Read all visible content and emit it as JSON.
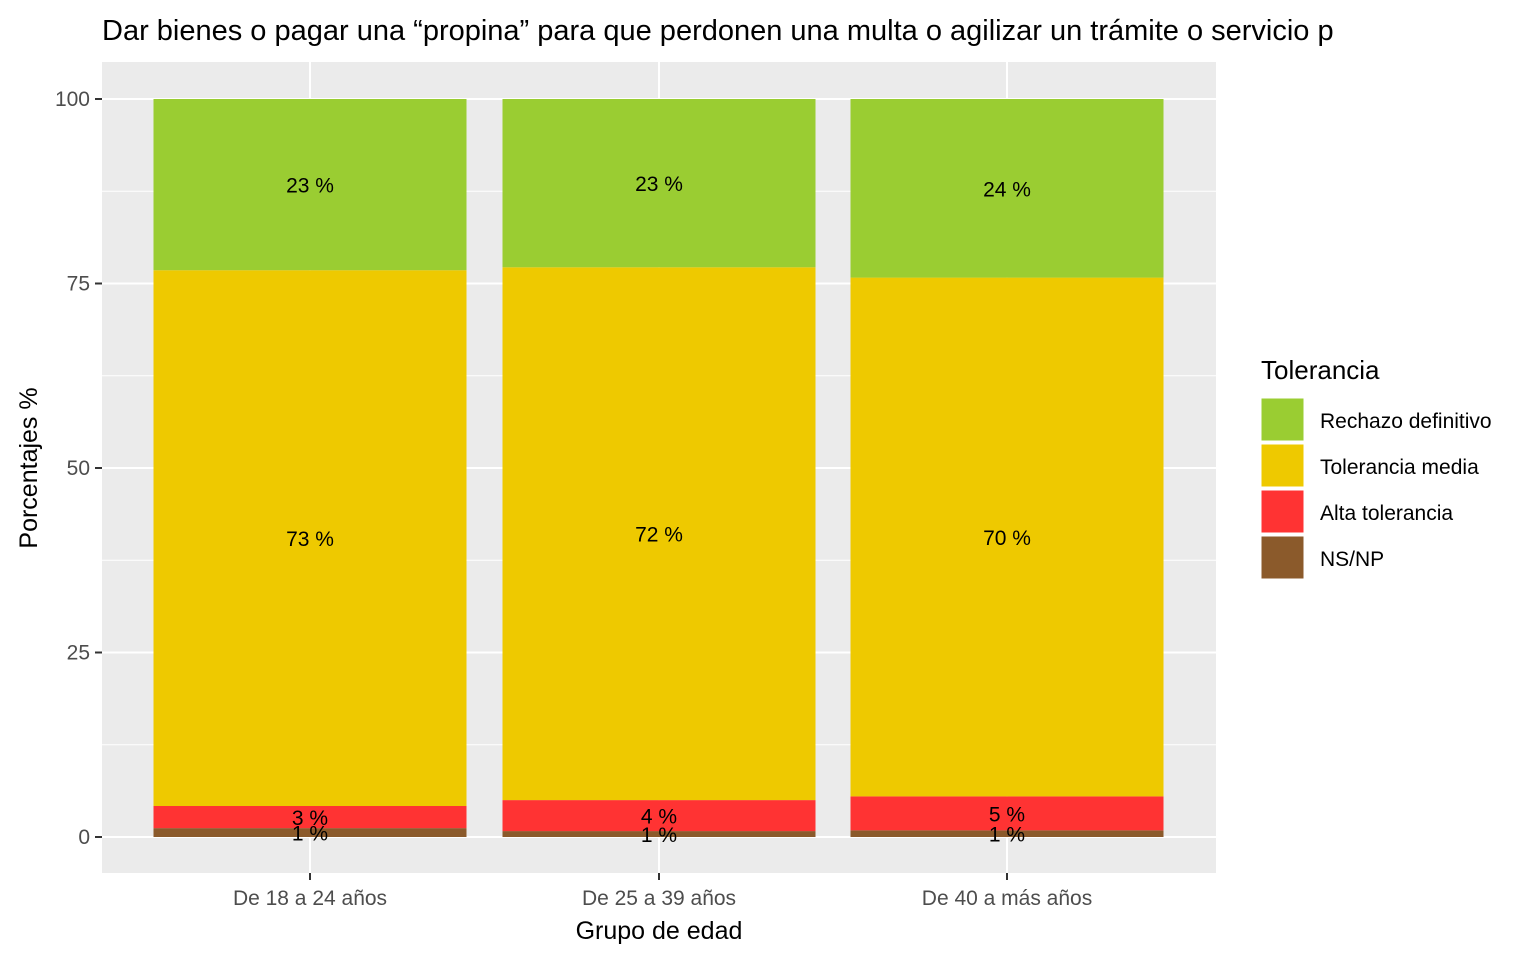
{
  "chart_data": {
    "type": "bar",
    "stacked": true,
    "title": "Dar bienes o pagar una “propina” para que perdonen una multa o agilizar un trámite o servicio p",
    "xlabel": "Grupo de edad",
    "ylabel": "Porcentajes %",
    "ylim": [
      0,
      100
    ],
    "yticks": [
      0,
      25,
      50,
      75,
      100
    ],
    "grid": true,
    "legend_position": "right",
    "legend_title": "Tolerancia",
    "categories": [
      "De 18 a 24 años",
      "De 25 a 39 años",
      "De 40 a más años"
    ],
    "series": [
      {
        "name": "NS/NP",
        "color": "#8B5A2B",
        "values": [
          1.2,
          0.8,
          0.9
        ],
        "labels": [
          "1 %",
          "1 %",
          "1 %"
        ]
      },
      {
        "name": "Alta tolerancia",
        "color": "#FF3333",
        "values": [
          3.0,
          4.2,
          4.6
        ],
        "labels": [
          "3 %",
          "4 %",
          "5 %"
        ]
      },
      {
        "name": "Tolerancia media",
        "color": "#EEC900",
        "values": [
          72.6,
          72.2,
          70.3
        ],
        "labels": [
          "73 %",
          "72 %",
          "70 %"
        ]
      },
      {
        "name": "Rechazo definitivo",
        "color": "#9ACD32",
        "values": [
          23.2,
          22.8,
          24.2
        ],
        "labels": [
          "23 %",
          "23 %",
          "24 %"
        ]
      }
    ],
    "legend_order": [
      "Rechazo definitivo",
      "Tolerancia media",
      "Alta tolerancia",
      "NS/NP"
    ]
  }
}
